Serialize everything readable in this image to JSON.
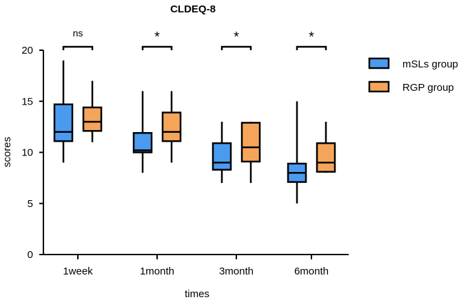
{
  "chart_data": {
    "type": "boxplot",
    "title": "CLDEQ-8",
    "xlabel": "times",
    "ylabel": "scores",
    "ylim": [
      0,
      20
    ],
    "yticks": [
      "0",
      "5",
      "10",
      "15",
      "20"
    ],
    "categories": [
      "1week",
      "1month",
      "3month",
      "6month"
    ],
    "series": [
      {
        "name": "mSLs group",
        "color": "#4a9bf0",
        "boxes": [
          {
            "min": 9,
            "q1": 11.1,
            "median": 12,
            "q3": 14.7,
            "max": 19
          },
          {
            "min": 8,
            "q1": 10,
            "median": 10.2,
            "q3": 11.9,
            "max": 16
          },
          {
            "min": 7,
            "q1": 8.3,
            "median": 9,
            "q3": 10.9,
            "max": 13
          },
          {
            "min": 5,
            "q1": 7.1,
            "median": 8,
            "q3": 8.9,
            "max": 15
          }
        ]
      },
      {
        "name": "RGP group",
        "color": "#f5a55a",
        "boxes": [
          {
            "min": 11,
            "q1": 12.1,
            "median": 13,
            "q3": 14.4,
            "max": 17
          },
          {
            "min": 9,
            "q1": 11.1,
            "median": 12,
            "q3": 13.9,
            "max": 16
          },
          {
            "min": 7,
            "q1": 9.1,
            "median": 10.5,
            "q3": 12.9,
            "max": 13
          },
          {
            "min": 8,
            "q1": 8.1,
            "median": 9,
            "q3": 10.9,
            "max": 13
          }
        ]
      }
    ],
    "significance": [
      "ns",
      "*",
      "*",
      "*"
    ],
    "legend_position": "right"
  }
}
